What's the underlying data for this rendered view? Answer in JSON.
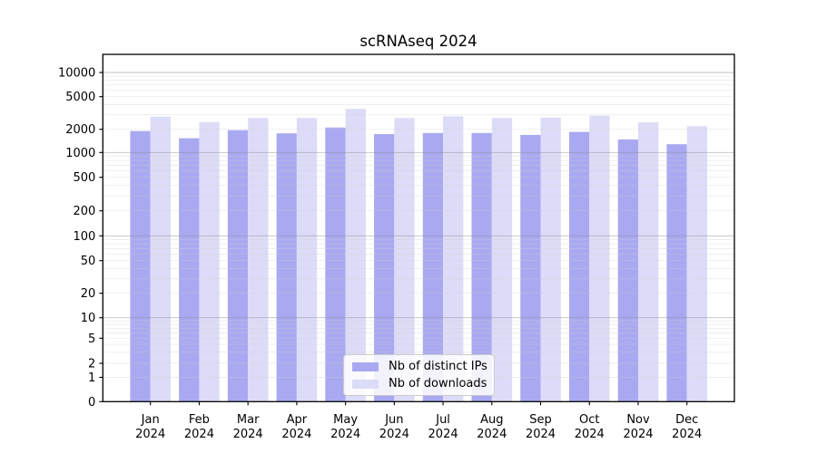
{
  "title": "scRNAseq 2024",
  "chart_data": {
    "type": "bar",
    "title": "scRNAseq 2024",
    "categories": [
      "Jan 2024",
      "Feb 2024",
      "Mar 2024",
      "Apr 2024",
      "May 2024",
      "Jun 2024",
      "Jul 2024",
      "Aug 2024",
      "Sep 2024",
      "Oct 2024",
      "Nov 2024",
      "Dec 2024"
    ],
    "series": [
      {
        "name": "Nb of distinct IPs",
        "color": "#a9a9f2",
        "values": [
          1900,
          1530,
          1950,
          1770,
          2100,
          1730,
          1790,
          1790,
          1690,
          1850,
          1480,
          1280
        ]
      },
      {
        "name": "Nb of downloads",
        "color": "#dcdcf8",
        "values": [
          2850,
          2450,
          2750,
          2750,
          3550,
          2750,
          2880,
          2750,
          2770,
          2930,
          2430,
          2180
        ]
      }
    ],
    "yscale": "log-like with 0 baseline",
    "y_ticks": [
      0,
      1,
      2,
      5,
      10,
      20,
      50,
      100,
      200,
      500,
      1000,
      2000,
      5000,
      10000
    ],
    "ylim": [
      0,
      16000
    ],
    "xlabel": "",
    "ylabel": "",
    "grid": "horizontal major and minor gridlines",
    "legend_position": "bottom-center"
  },
  "legend": {
    "items": [
      {
        "label": "Nb of distinct IPs"
      },
      {
        "label": "Nb of downloads"
      }
    ]
  }
}
